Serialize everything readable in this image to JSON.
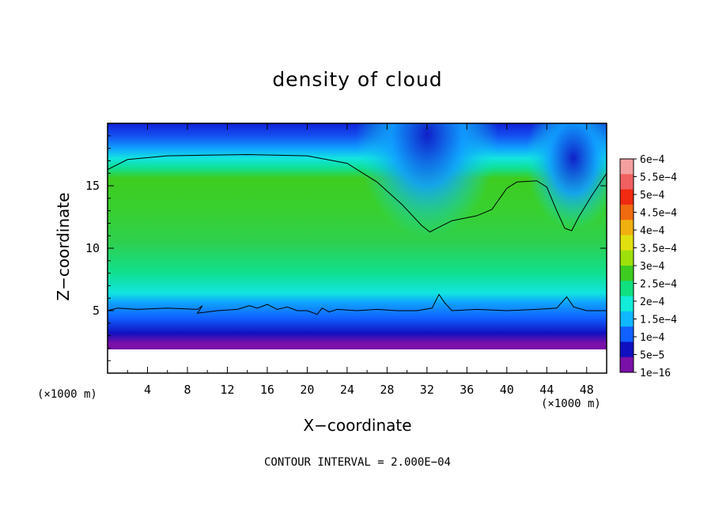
{
  "chart_data": {
    "type": "heatmap",
    "title": "density of cloud",
    "xlabel": "X−coordinate",
    "ylabel": "Z−coordinate",
    "x_unit_left": "(×1000 m)",
    "x_unit_right": "(×1000 m)",
    "xlim": [
      0,
      50
    ],
    "ylim": [
      0,
      20
    ],
    "x_ticks": [
      4,
      8,
      12,
      16,
      20,
      24,
      28,
      32,
      36,
      40,
      44,
      48
    ],
    "y_ticks": [
      5,
      10,
      15
    ],
    "contour_note": "CONTOUR INTERVAL = 2.000E−04",
    "colorbar": {
      "labels": [
        "6e−4",
        "5.5e−4",
        "5e−4",
        "4.5e−4",
        "4e−4",
        "3.5e−4",
        "3e−4",
        "2.5e−4",
        "2e−4",
        "1.5e−4",
        "1e−4",
        "5e−5",
        "1e−16"
      ],
      "colors": [
        "#f4a0a0",
        "#f06060",
        "#f02a10",
        "#f06a10",
        "#f0b010",
        "#e0e010",
        "#9ee00a",
        "#3ecc20",
        "#10e080",
        "#12ecd8",
        "#10b8ff",
        "#1060ff",
        "#1010c0",
        "#7a10a8"
      ]
    },
    "contour_upper": [
      [
        0,
        16.3
      ],
      [
        2,
        17.1
      ],
      [
        6,
        17.4
      ],
      [
        14,
        17.5
      ],
      [
        20,
        17.4
      ],
      [
        24,
        16.8
      ],
      [
        27,
        15.3
      ],
      [
        29.5,
        13.5
      ],
      [
        31.5,
        11.8
      ],
      [
        32.3,
        11.3
      ],
      [
        33,
        11.6
      ],
      [
        34.5,
        12.2
      ],
      [
        37,
        12.6
      ],
      [
        38.5,
        13.1
      ],
      [
        40,
        14.8
      ],
      [
        41,
        15.3
      ],
      [
        43,
        15.4
      ],
      [
        44,
        14.9
      ],
      [
        45,
        13.0
      ],
      [
        45.8,
        11.6
      ],
      [
        46.5,
        11.4
      ],
      [
        47.2,
        12.5
      ],
      [
        48.5,
        14.2
      ],
      [
        50,
        16.0
      ]
    ],
    "contour_lower": [
      [
        0,
        5.0
      ],
      [
        1,
        5.2
      ],
      [
        3,
        5.1
      ],
      [
        6,
        5.2
      ],
      [
        9,
        5.1
      ],
      [
        9.5,
        5.4
      ],
      [
        9,
        4.8
      ],
      [
        11,
        5.0
      ],
      [
        13,
        5.1
      ],
      [
        14.2,
        5.4
      ],
      [
        15,
        5.2
      ],
      [
        16,
        5.5
      ],
      [
        17,
        5.1
      ],
      [
        18,
        5.3
      ],
      [
        19,
        5.0
      ],
      [
        20,
        5.0
      ],
      [
        21,
        4.7
      ],
      [
        21.5,
        5.2
      ],
      [
        22.2,
        4.9
      ],
      [
        23,
        5.1
      ],
      [
        25,
        5.0
      ],
      [
        27,
        5.1
      ],
      [
        29,
        5.0
      ],
      [
        31,
        5.0
      ],
      [
        32.5,
        5.2
      ],
      [
        33.2,
        6.3
      ],
      [
        33.8,
        5.6
      ],
      [
        34.5,
        5.0
      ],
      [
        37,
        5.1
      ],
      [
        40,
        5.0
      ],
      [
        43,
        5.1
      ],
      [
        45,
        5.2
      ],
      [
        46,
        6.1
      ],
      [
        46.7,
        5.3
      ],
      [
        48,
        5.0
      ],
      [
        50,
        5.0
      ]
    ]
  }
}
